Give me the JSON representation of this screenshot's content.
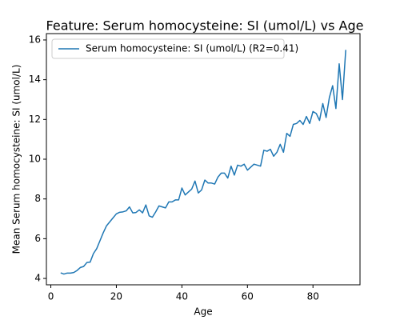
{
  "chart_data": {
    "type": "line",
    "title": "Feature: Serum homocysteine: SI (umol/L) vs Age",
    "xlabel": "Age",
    "ylabel": "Mean Serum homocysteine: SI (umol/L)",
    "x": [
      3,
      4,
      5,
      6,
      7,
      8,
      9,
      10,
      11,
      12,
      13,
      14,
      15,
      16,
      17,
      18,
      19,
      20,
      21,
      22,
      23,
      24,
      25,
      26,
      27,
      28,
      29,
      30,
      31,
      32,
      33,
      34,
      35,
      36,
      37,
      38,
      39,
      40,
      41,
      42,
      43,
      44,
      45,
      46,
      47,
      48,
      49,
      50,
      51,
      52,
      53,
      54,
      55,
      56,
      57,
      58,
      59,
      60,
      61,
      62,
      63,
      64,
      65,
      66,
      67,
      68,
      69,
      70,
      71,
      72,
      73,
      74,
      75,
      76,
      77,
      78,
      79,
      80,
      81,
      82,
      83,
      84,
      85,
      86,
      87,
      88,
      89,
      90
    ],
    "series": [
      {
        "name": "Serum homocysteine: SI (umol/L) (R2=0.41)",
        "color": "#1f77b4",
        "values": [
          4.28,
          4.22,
          4.27,
          4.27,
          4.3,
          4.4,
          4.55,
          4.6,
          4.8,
          4.82,
          5.25,
          5.5,
          5.9,
          6.3,
          6.65,
          6.85,
          7.05,
          7.25,
          7.33,
          7.35,
          7.4,
          7.6,
          7.3,
          7.32,
          7.45,
          7.3,
          7.7,
          7.15,
          7.08,
          7.35,
          7.65,
          7.6,
          7.55,
          7.85,
          7.85,
          7.95,
          7.95,
          8.55,
          8.2,
          8.35,
          8.5,
          8.9,
          8.3,
          8.45,
          8.95,
          8.8,
          8.8,
          8.75,
          9.1,
          9.3,
          9.3,
          9.05,
          9.65,
          9.2,
          9.7,
          9.65,
          9.75,
          9.45,
          9.6,
          9.75,
          9.7,
          9.65,
          10.45,
          10.4,
          10.5,
          10.15,
          10.35,
          10.75,
          10.35,
          11.3,
          11.15,
          11.75,
          11.8,
          11.95,
          11.75,
          12.15,
          11.8,
          12.4,
          12.3,
          11.95,
          12.8,
          12.1,
          13.1,
          13.7,
          12.55,
          14.8,
          13.0,
          15.5
        ]
      }
    ],
    "xlim": [
      -1.35,
      94.35
    ],
    "xticks": [
      0,
      20,
      40,
      60,
      80
    ],
    "ylim": [
      3.68,
      16.32
    ],
    "yticks": [
      4,
      6,
      8,
      10,
      12,
      14,
      16
    ],
    "grid": false,
    "legend": "upper left"
  }
}
